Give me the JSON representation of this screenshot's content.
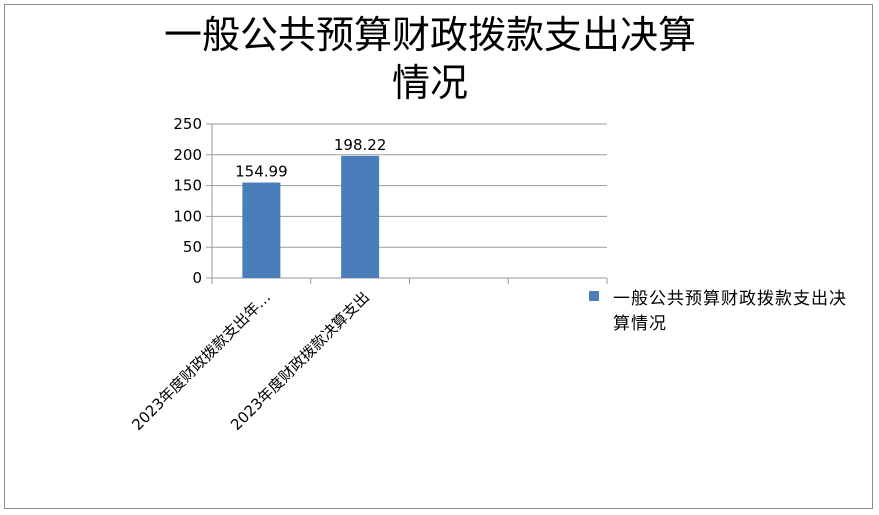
{
  "colors": {
    "bar": "#4a7ebb",
    "gridline": "#9a9a9a",
    "axis": "#9a9a9a",
    "text": "#000000",
    "frame": "#8c8c8c"
  },
  "chart_data": {
    "type": "bar",
    "title_line1": "一般公共预算财政拨款支出决算",
    "title_line2": "情况",
    "categories": [
      "2023年度财政拨款支出年…",
      "2023年度财政拨款决算支出",
      "",
      ""
    ],
    "series": [
      {
        "name": "一般公共预算财政拨款支出决算情况",
        "values": [
          154.99,
          198.22,
          null,
          null
        ]
      }
    ],
    "data_labels": [
      "154.99",
      "198.22"
    ],
    "ylim": [
      0,
      250
    ],
    "yticks": [
      0,
      50,
      100,
      150,
      200,
      250
    ],
    "grid": true,
    "legend_position": "right"
  }
}
